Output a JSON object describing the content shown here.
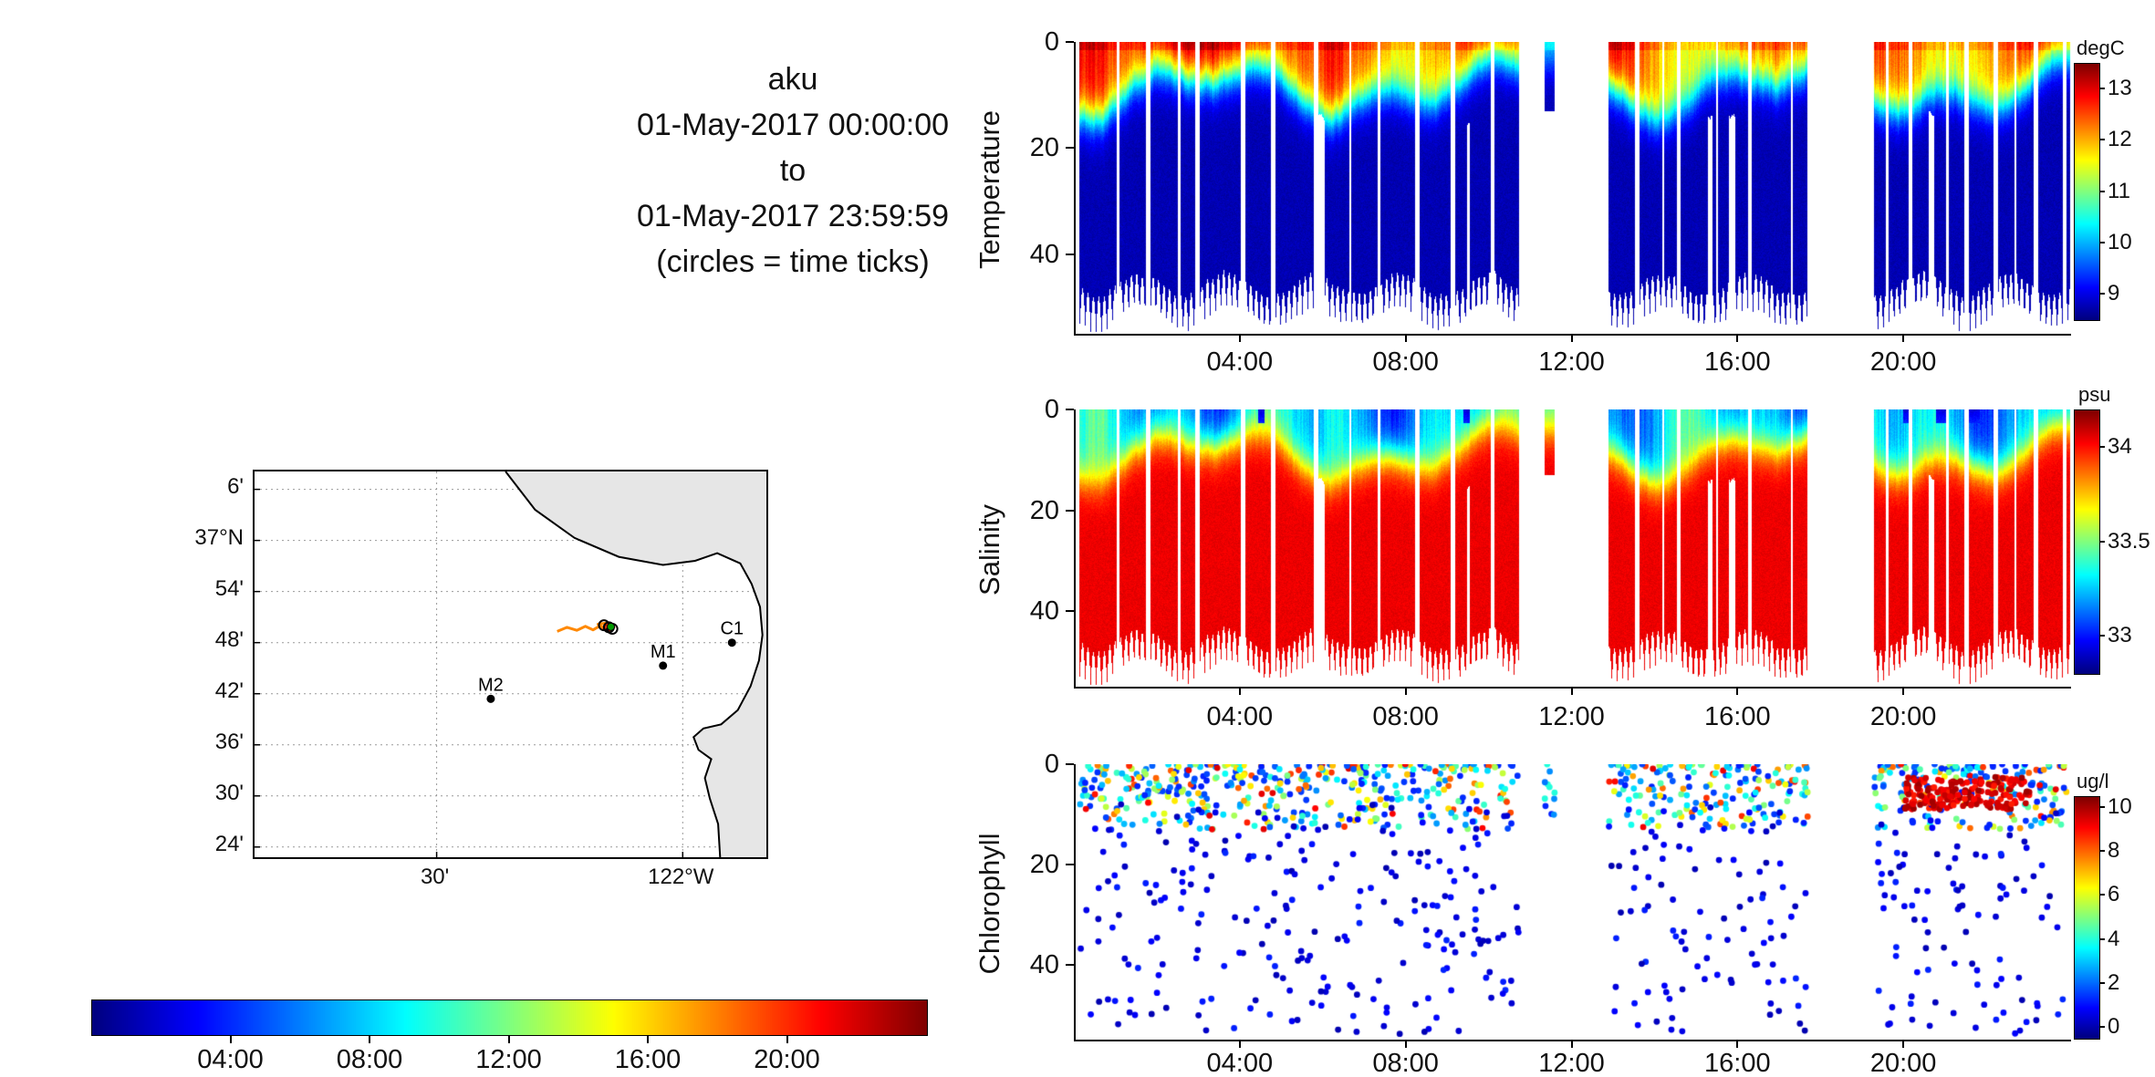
{
  "title_block": {
    "lines": [
      "aku",
      "01-May-2017 00:00:00",
      "to",
      "01-May-2017 23:59:59",
      "(circles = time ticks)"
    ]
  },
  "map": {
    "lat_tick_labels": [
      "6'",
      "37°N",
      "54'",
      "48'",
      "42'",
      "36'",
      "30'",
      "24'"
    ],
    "lat_tick_values": [
      37.1,
      37.0,
      36.9,
      36.8,
      36.7,
      36.6,
      36.5,
      36.4
    ],
    "lon_tick_labels": [
      "30'",
      "122°W"
    ],
    "lon_tick_values": [
      -122.5,
      -122.0
    ],
    "lon_range": [
      -122.87,
      -121.83
    ],
    "lat_range": [
      36.38,
      37.135
    ],
    "land_color": "#e6e6e6",
    "coastline": [
      [
        -122.36,
        37.135
      ],
      [
        -122.3,
        37.06
      ],
      [
        -122.22,
        37.005
      ],
      [
        -122.13,
        36.968
      ],
      [
        -122.04,
        36.952
      ],
      [
        -121.975,
        36.96
      ],
      [
        -121.93,
        36.975
      ],
      [
        -121.883,
        36.955
      ],
      [
        -121.86,
        36.915
      ],
      [
        -121.843,
        36.87
      ],
      [
        -121.838,
        36.815
      ],
      [
        -121.845,
        36.765
      ],
      [
        -121.862,
        36.715
      ],
      [
        -121.888,
        36.668
      ],
      [
        -121.922,
        36.64
      ],
      [
        -121.958,
        36.632
      ],
      [
        -121.978,
        36.615
      ],
      [
        -121.968,
        36.59
      ],
      [
        -121.942,
        36.572
      ],
      [
        -121.955,
        36.535
      ],
      [
        -121.945,
        36.495
      ],
      [
        -121.928,
        36.445
      ],
      [
        -121.924,
        36.38
      ]
    ],
    "stations": [
      {
        "name": "M2",
        "lon": -122.39,
        "lat": 36.69
      },
      {
        "name": "M1",
        "lon": -122.04,
        "lat": 36.755
      },
      {
        "name": "C1",
        "lon": -121.9,
        "lat": 36.8
      }
    ],
    "track": {
      "color": "#ff8800",
      "color_recent": "#cc2200",
      "points": [
        [
          -122.255,
          36.822
        ],
        [
          -122.235,
          36.83
        ],
        [
          -122.215,
          36.824
        ],
        [
          -122.198,
          36.832
        ],
        [
          -122.182,
          36.825
        ],
        [
          -122.168,
          36.833
        ],
        [
          -122.155,
          36.827
        ],
        [
          -122.145,
          36.834
        ],
        [
          -122.157,
          36.838
        ],
        [
          -122.172,
          36.836
        ],
        [
          -122.162,
          36.829
        ],
        [
          -122.15,
          36.824
        ],
        [
          -122.14,
          36.83
        ],
        [
          -122.148,
          36.836
        ],
        [
          -122.16,
          36.832
        ]
      ],
      "time_tick_circles": [
        [
          -122.15,
          36.83
        ],
        [
          -122.16,
          36.834
        ],
        [
          -122.143,
          36.827
        ]
      ],
      "end_marker": {
        "lon": -122.146,
        "lat": 36.831,
        "color": "#009900"
      }
    }
  },
  "time_colorbar": {
    "colormap": "jet",
    "range_hours": [
      0,
      24
    ],
    "tick_hours": [
      4,
      8,
      12,
      16,
      20
    ],
    "tick_labels": [
      "04:00",
      "08:00",
      "12:00",
      "16:00",
      "20:00"
    ]
  },
  "chart_data": [
    {
      "type": "heatmap",
      "name": "temperature-section",
      "ylabel": "Temperature",
      "x_range_hours": [
        0,
        24
      ],
      "x_tick_hours": [
        4,
        8,
        12,
        16,
        20
      ],
      "x_tick_labels": [
        "04:00",
        "08:00",
        "12:00",
        "16:00",
        "20:00"
      ],
      "y_range_m": [
        0,
        55
      ],
      "y_tick_values": [
        0,
        20,
        40
      ],
      "colorbar": {
        "label": "degC",
        "tick_values": [
          13,
          12,
          11,
          10,
          9
        ],
        "clim": [
          8.5,
          13.5
        ],
        "colormap": "jet"
      },
      "gaps_hours": [
        [
          10.7,
          12.85
        ],
        [
          17.65,
          19.25
        ]
      ],
      "isolated_profile": {
        "hours": [
          11.3,
          11.55
        ],
        "depth_m": 13
      },
      "water": {
        "surface_value": 12.5,
        "deep_value": 8.75,
        "thermocline_depth_m": [
          3,
          16
        ],
        "profile_depth_m": [
          46,
          54
        ],
        "afternoon_surface_cooling": 1.15
      }
    },
    {
      "type": "heatmap",
      "name": "salinity-section",
      "ylabel": "Salinity",
      "x_range_hours": [
        0,
        24
      ],
      "x_tick_hours": [
        4,
        8,
        12,
        16,
        20
      ],
      "x_tick_labels": [
        "04:00",
        "08:00",
        "12:00",
        "16:00",
        "20:00"
      ],
      "y_range_m": [
        0,
        55
      ],
      "y_tick_values": [
        0,
        20,
        40
      ],
      "colorbar": {
        "label": "psu",
        "tick_values": [
          34,
          33.5,
          33
        ],
        "clim": [
          32.8,
          34.2
        ],
        "colormap": "jet"
      },
      "gaps_hours": [
        [
          10.7,
          12.85
        ],
        [
          17.65,
          19.25
        ]
      ],
      "isolated_profile": {
        "hours": [
          11.3,
          11.55
        ],
        "depth_m": 13
      },
      "fresh_windows_hours": [
        [
          4.4,
          4.55
        ],
        [
          9.35,
          9.5
        ],
        [
          19.95,
          20.15
        ],
        [
          20.75,
          21.05
        ],
        [
          21.5,
          21.8
        ]
      ],
      "water": {
        "surface_value": 33.22,
        "deep_value": 34.05,
        "halocline_depth_m": [
          3,
          16
        ],
        "fresh_surface_value": 32.92
      }
    },
    {
      "type": "scatter",
      "name": "chlorophyll-section",
      "ylabel": "Chlorophyll",
      "x_range_hours": [
        0,
        24
      ],
      "x_tick_hours": [
        4,
        8,
        12,
        16,
        20
      ],
      "x_tick_labels": [
        "04:00",
        "08:00",
        "12:00",
        "16:00",
        "20:00"
      ],
      "y_range_m": [
        0,
        55
      ],
      "y_tick_values": [
        0,
        20,
        40
      ],
      "colorbar": {
        "label": "ug/l",
        "tick_values": [
          10,
          8,
          6,
          4,
          2,
          0
        ],
        "clim": [
          -0.5,
          10.5
        ],
        "colormap": "jet"
      },
      "gaps_hours": [
        [
          10.7,
          12.85
        ],
        [
          17.65,
          19.25
        ]
      ],
      "points": {
        "surface_band_m": [
          0,
          13
        ],
        "surface_value_range": [
          1.2,
          9.5
        ],
        "surface_count": 950,
        "deep_band_m": [
          8,
          54
        ],
        "deep_value_range": [
          0,
          1.3
        ],
        "deep_count": 520,
        "bloom": {
          "hours": [
            20,
            23
          ],
          "depth_m": [
            2.5,
            9
          ],
          "value_range": [
            8.8,
            10.2
          ],
          "count": 180
        }
      }
    }
  ]
}
